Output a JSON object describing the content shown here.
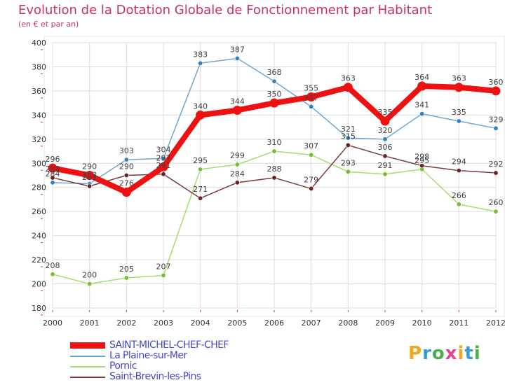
{
  "header": {
    "title": "Evolution de la Dotation Globale de Fonctionnement par Habitant",
    "subtitle": "(en € et par an)"
  },
  "logo": {
    "text": "Proxiti",
    "letter_colors": [
      "#f0a81e",
      "#3a9bd9",
      "#4cae4c",
      "#e84393",
      "#f0a81e",
      "#3a9bd9",
      "#4cae4c"
    ]
  },
  "chart_data": {
    "type": "line",
    "title": "Evolution de la Dotation Globale de Fonctionnement par Habitant",
    "subtitle": "(en € et par an)",
    "x": [
      "2000",
      "2001",
      "2002",
      "2003",
      "2004",
      "2005",
      "2006",
      "2007",
      "2008",
      "2009",
      "2010",
      "2011",
      "2012"
    ],
    "ylim": [
      180,
      400
    ],
    "yticks": [
      180,
      200,
      220,
      240,
      260,
      280,
      300,
      320,
      340,
      360,
      380,
      400
    ],
    "grid": true,
    "legend_position": "bottom-left",
    "series": [
      {
        "name": "SAINT-MICHEL-CHEF-CHEF",
        "color": "#ee1111",
        "marker": "#ee1111",
        "values": [
          296,
          290,
          276,
          297,
          340,
          344,
          350,
          355,
          363,
          335,
          364,
          363,
          360
        ],
        "labels": [
          "296",
          "290",
          "276",
          "297",
          "340",
          "344",
          "350",
          "355",
          "363",
          "335",
          "364",
          "363",
          "360"
        ],
        "emphasized": true
      },
      {
        "name": "La Plaine-sur-Mer",
        "color": "#6ea6d2",
        "marker": "#3380c0",
        "values": [
          284,
          283,
          303,
          304,
          383,
          387,
          368,
          347,
          321,
          320,
          341,
          335,
          329
        ],
        "labels": [
          "284",
          "283",
          "303",
          "304",
          "383",
          "387",
          "368",
          "347",
          "321",
          "320",
          "341",
          "335",
          "329"
        ]
      },
      {
        "name": "Pornic",
        "color": "#a8dc70",
        "marker": "#72c032",
        "values": [
          208,
          200,
          205,
          207,
          295,
          299,
          310,
          307,
          293,
          291,
          295,
          266,
          260
        ],
        "labels": [
          "208",
          "200",
          "205",
          "207",
          "295",
          "299",
          "310",
          "307",
          "293",
          "291",
          "295",
          "266",
          "260"
        ]
      },
      {
        "name": "Saint-Brevin-les-Pins",
        "color": "#7a3a3a",
        "marker": "#6a2222",
        "values": [
          288,
          281,
          290,
          291,
          271,
          284,
          288,
          279,
          315,
          306,
          298,
          294,
          292
        ],
        "labels": [
          "288",
          "281",
          "290",
          "291",
          "271",
          "284",
          "288",
          "279",
          "315",
          "306",
          "298",
          "294",
          "292"
        ]
      }
    ]
  }
}
